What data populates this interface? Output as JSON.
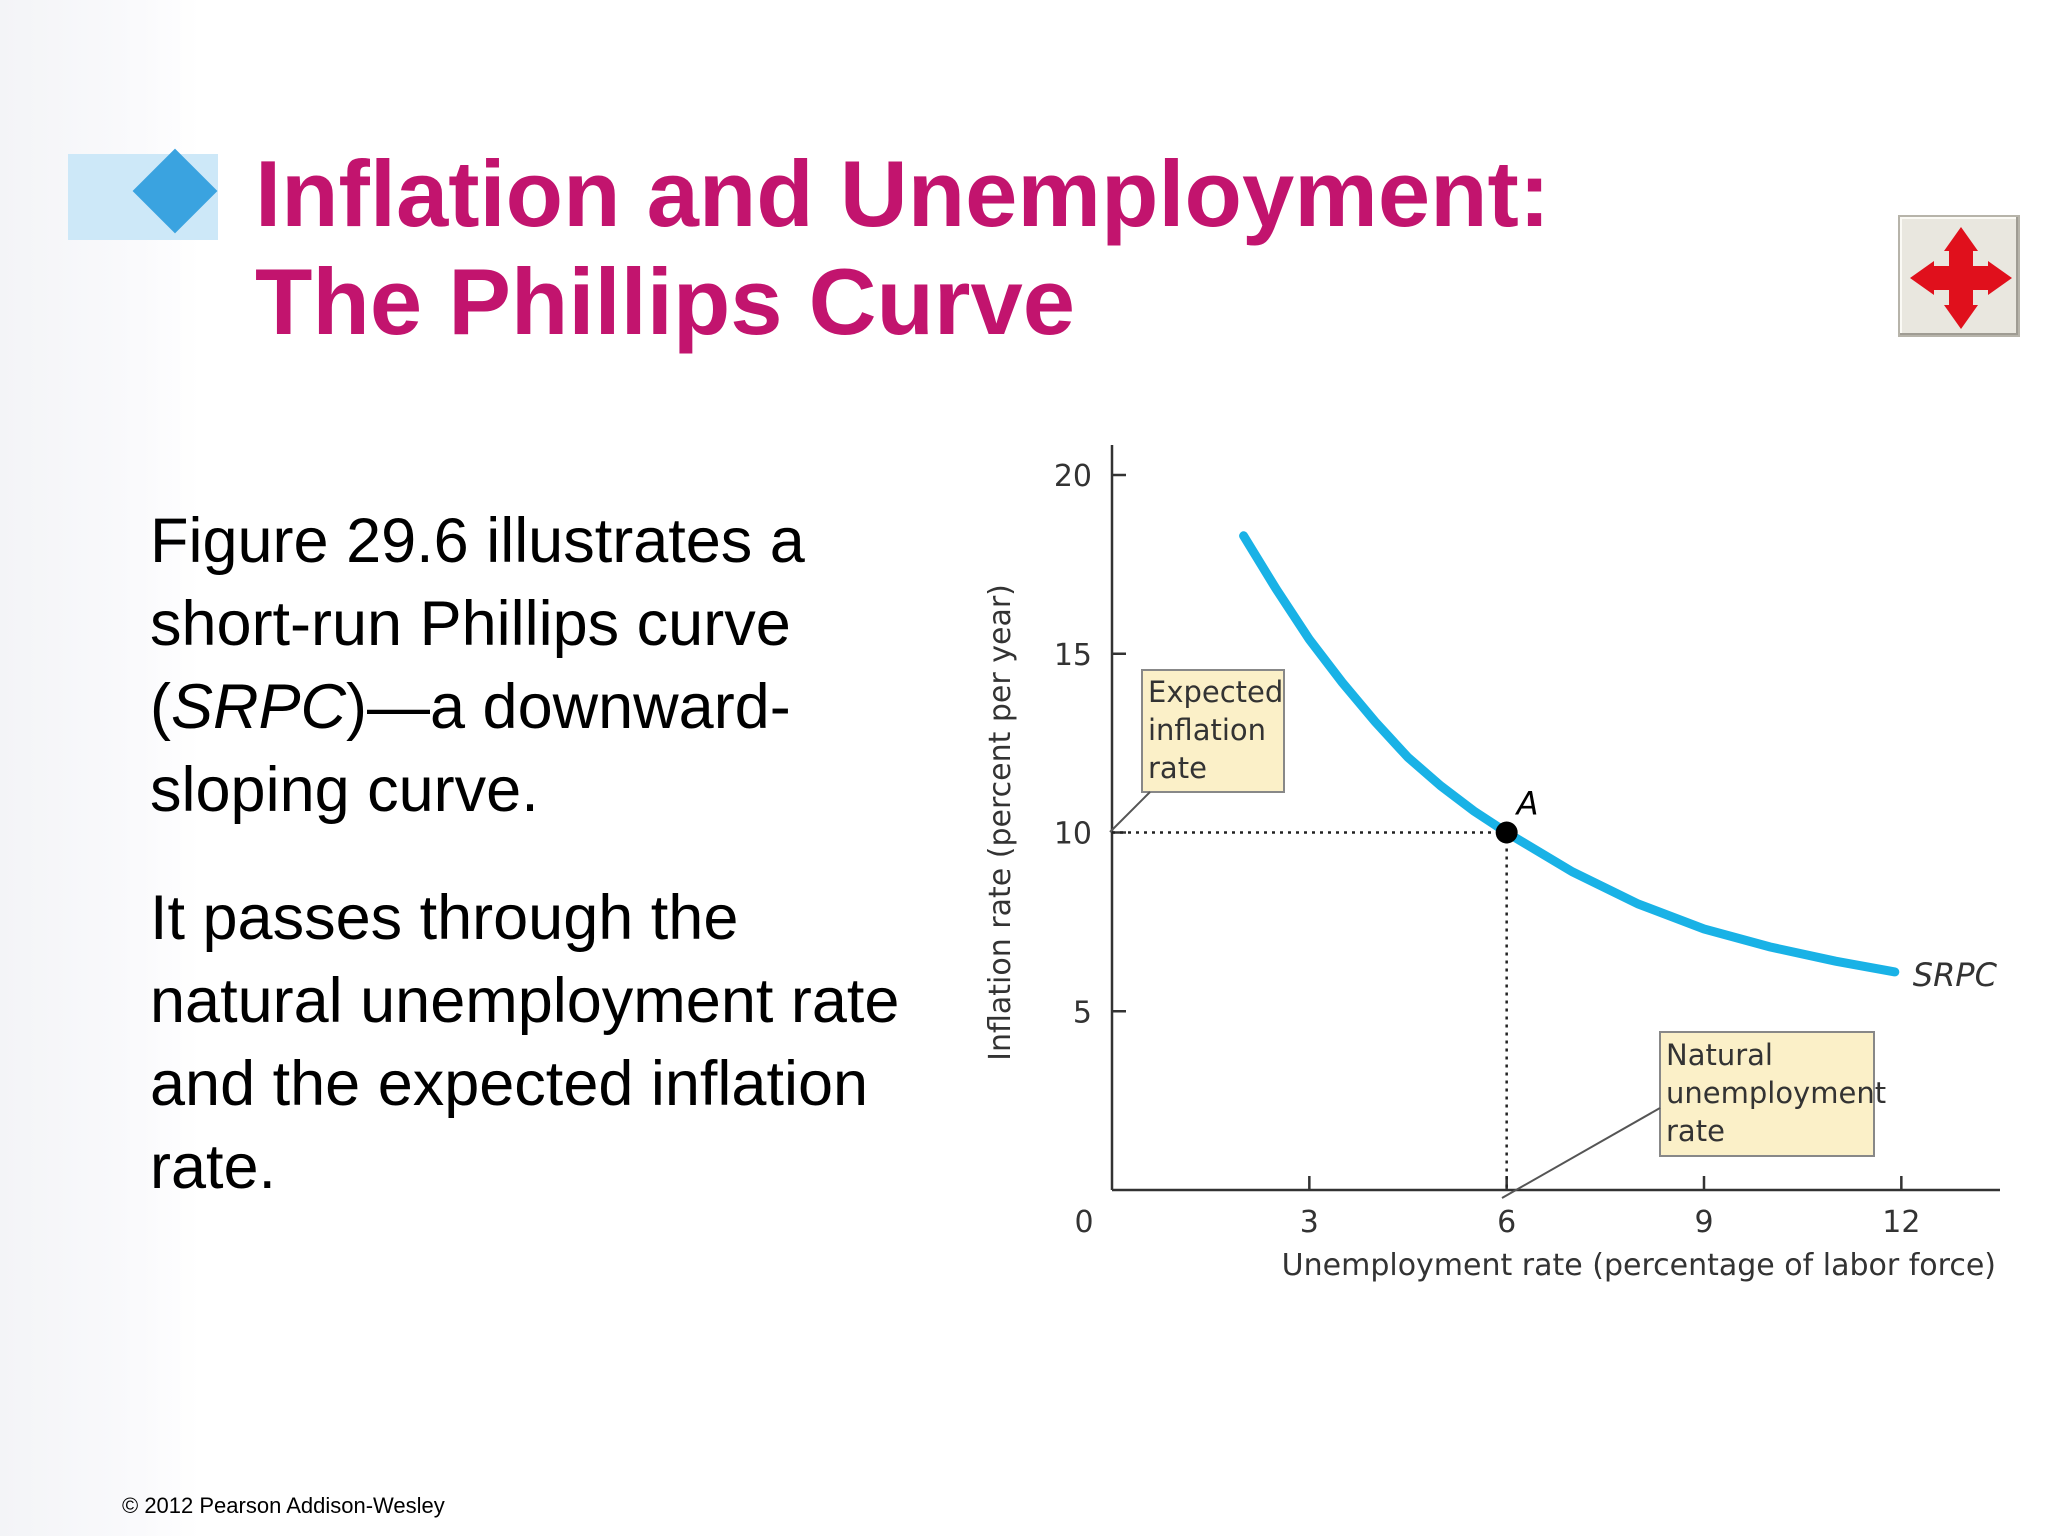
{
  "title": {
    "line1": "Inflation and Unemployment:",
    "line2": "The Phillips Curve"
  },
  "body": {
    "p1_lines": [
      "Figure 29.6 illustrates a",
      "short-run Phillips curve"
    ],
    "p1_open": "(",
    "p1_italic": "SRPC",
    "p1_after": ")—a downward-",
    "p1_end": "sloping curve.",
    "p2_lines": [
      "It passes through the",
      "natural unemployment rate",
      "and the expected inflation",
      "rate."
    ]
  },
  "copyright": "© 2012 Pearson Addison-Wesley",
  "icons": {
    "move": "move-arrows-icon",
    "bullet": "diamond-bullet-icon"
  },
  "colors": {
    "title": "#c2146e",
    "curve": "#19b2e6",
    "label_box": "#fbf0c8",
    "move_icon": "#e0101c"
  },
  "chart_data": {
    "type": "line",
    "xlabel": "Unemployment rate (percentage of labor force)",
    "ylabel": "Inflation rate (percent per year)",
    "xlim": [
      0,
      13.5
    ],
    "ylim": [
      0,
      20
    ],
    "x_ticks": [
      3,
      6,
      9,
      12
    ],
    "y_ticks": [
      5,
      10,
      15,
      20
    ],
    "origin_label": "0",
    "grid": false,
    "series": [
      {
        "name": "SRPC",
        "x": [
          2.0,
          2.5,
          3.0,
          3.5,
          4.0,
          4.5,
          5.0,
          5.5,
          6.0,
          7.0,
          8.0,
          9.0,
          10.0,
          11.0,
          11.9
        ],
        "y": [
          18.3,
          16.8,
          15.4,
          14.2,
          13.1,
          12.1,
          11.3,
          10.6,
          10.0,
          8.9,
          8.0,
          7.3,
          6.8,
          6.4,
          6.1
        ]
      }
    ],
    "point": {
      "label": "A",
      "x": 6,
      "y": 10
    },
    "annotations": {
      "expected_inflation": {
        "lines": [
          "Expected",
          "inflation",
          "rate"
        ],
        "points_to_y": 10
      },
      "natural_unemployment": {
        "lines": [
          "Natural",
          "unemployment",
          "rate"
        ],
        "points_to_x": 6
      }
    }
  }
}
